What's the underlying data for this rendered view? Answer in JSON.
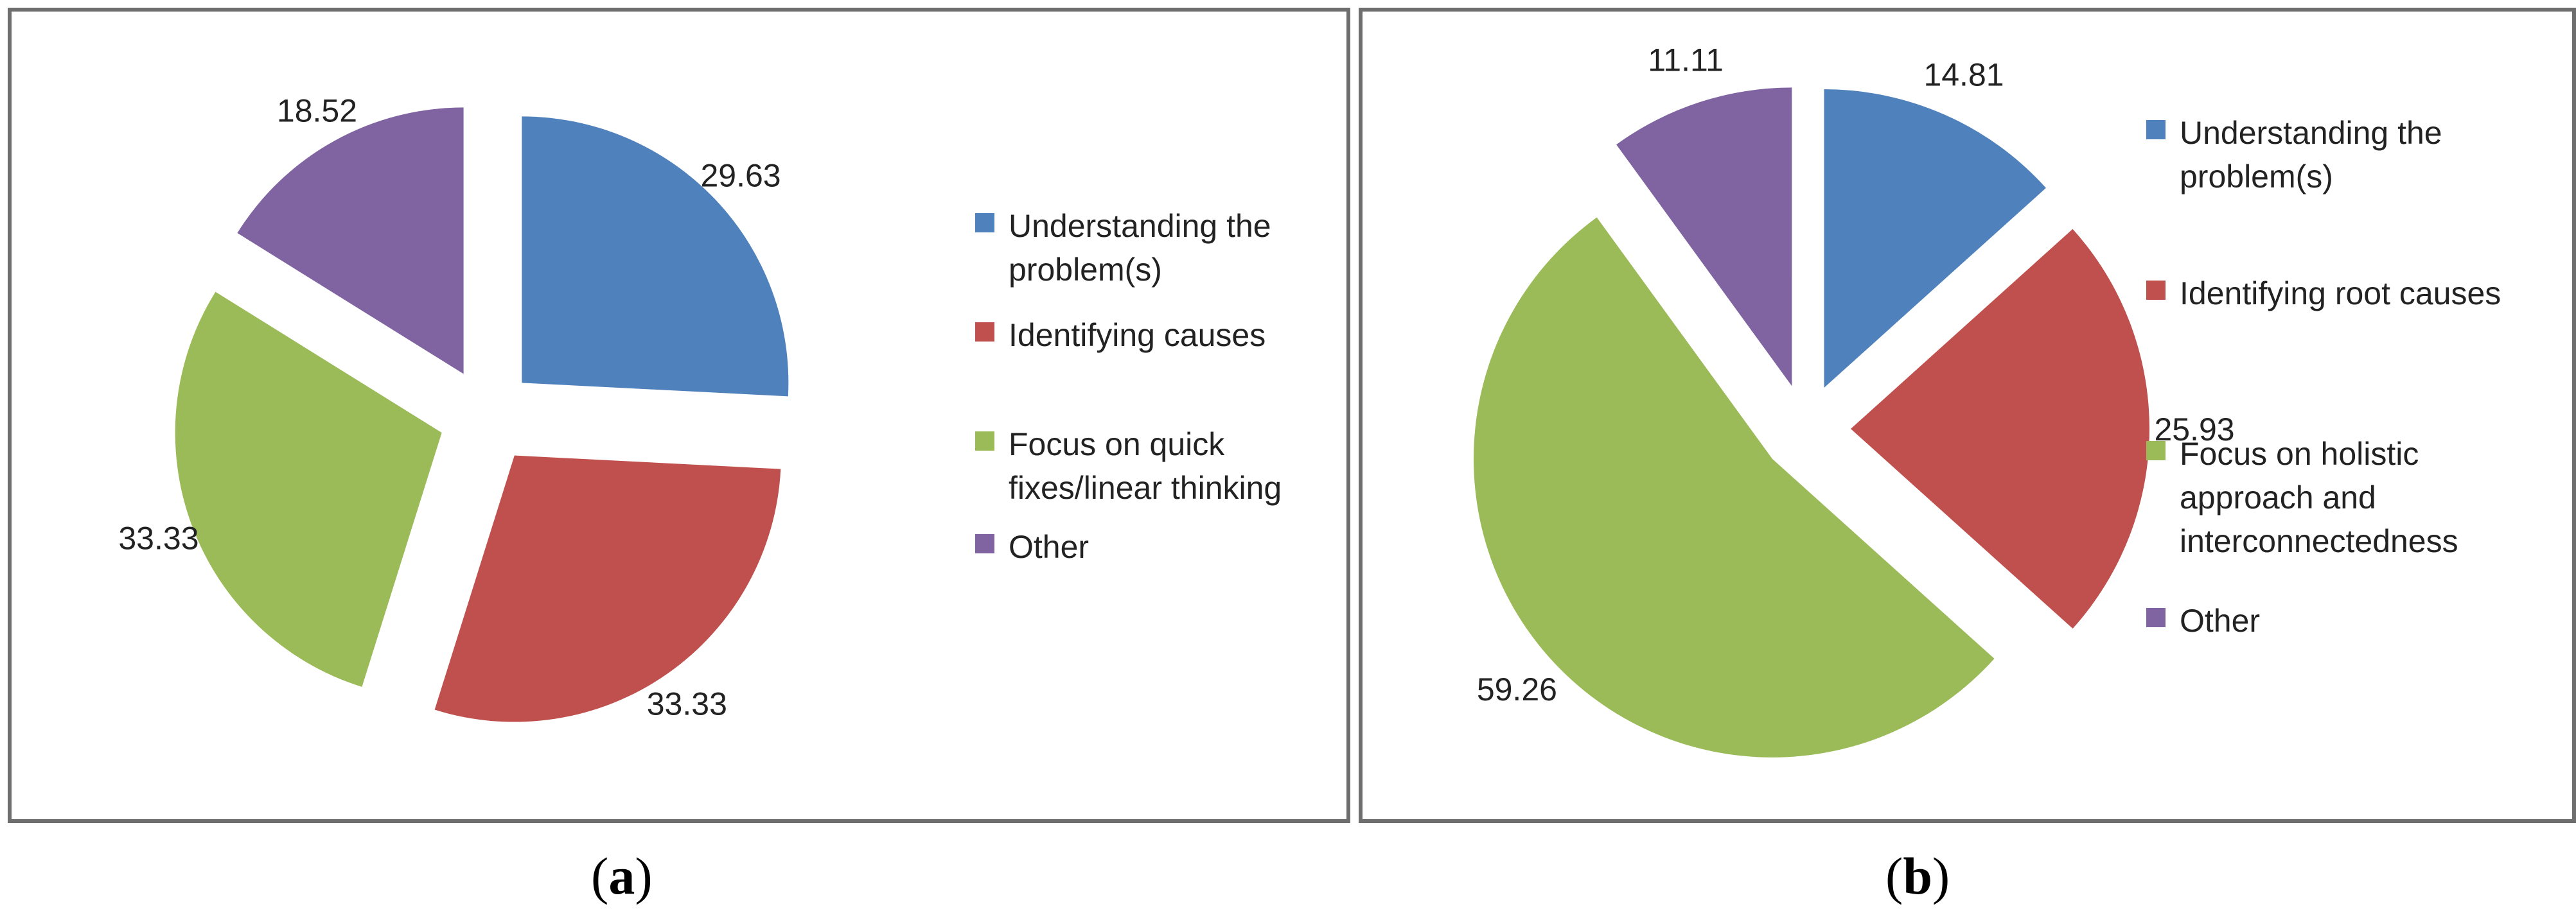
{
  "chart_data": [
    {
      "type": "pie",
      "panel_caption": "a",
      "slices": [
        {
          "label": "Understanding the problem(s)",
          "value": 29.63,
          "value_label": "29.63",
          "color": "#4F81BD"
        },
        {
          "label": "Identifying  causes",
          "value": 33.33,
          "value_label": "33.33",
          "color": "#C0504D"
        },
        {
          "label": "Focus on quick fixes/linear thinking",
          "value": 33.33,
          "value_label": "33.33",
          "color": "#9BBB59"
        },
        {
          "label": "Other",
          "value": 18.52,
          "value_label": "18.52",
          "color": "#8064A2"
        }
      ],
      "legend": {
        "position": "right",
        "items": [
          {
            "lines": [
              "Understanding the",
              "problem(s)"
            ],
            "color": "#4F81BD"
          },
          {
            "lines": [
              "Identifying  causes"
            ],
            "color": "#C0504D"
          },
          {
            "lines": [
              "Focus on quick",
              "fixes/linear thinking"
            ],
            "color": "#9BBB59"
          },
          {
            "lines": [
              "Other"
            ],
            "color": "#8064A2"
          }
        ]
      },
      "exploded": true
    },
    {
      "type": "pie",
      "panel_caption": "b",
      "slices": [
        {
          "label": "Understanding the problem(s)",
          "value": 14.81,
          "value_label": "14.81",
          "color": "#4F81BD"
        },
        {
          "label": "Identifying root causes",
          "value": 25.93,
          "value_label": "25.93",
          "color": "#C0504D"
        },
        {
          "label": "Focus on holistic approach and interconnectedness",
          "value": 59.26,
          "value_label": "59.26",
          "color": "#9BBB59"
        },
        {
          "label": "Other",
          "value": 11.11,
          "value_label": "11.11",
          "color": "#8064A2"
        }
      ],
      "legend": {
        "position": "right",
        "items": [
          {
            "lines": [
              "Understanding the",
              "problem(s)"
            ],
            "color": "#4F81BD"
          },
          {
            "lines": [
              "Identifying root causes"
            ],
            "color": "#C0504D"
          },
          {
            "lines": [
              "Focus on holistic",
              "approach and",
              "interconnectedness"
            ],
            "color": "#9BBB59"
          },
          {
            "lines": [
              "Other"
            ],
            "color": "#8064A2"
          }
        ]
      },
      "exploded": true
    }
  ]
}
